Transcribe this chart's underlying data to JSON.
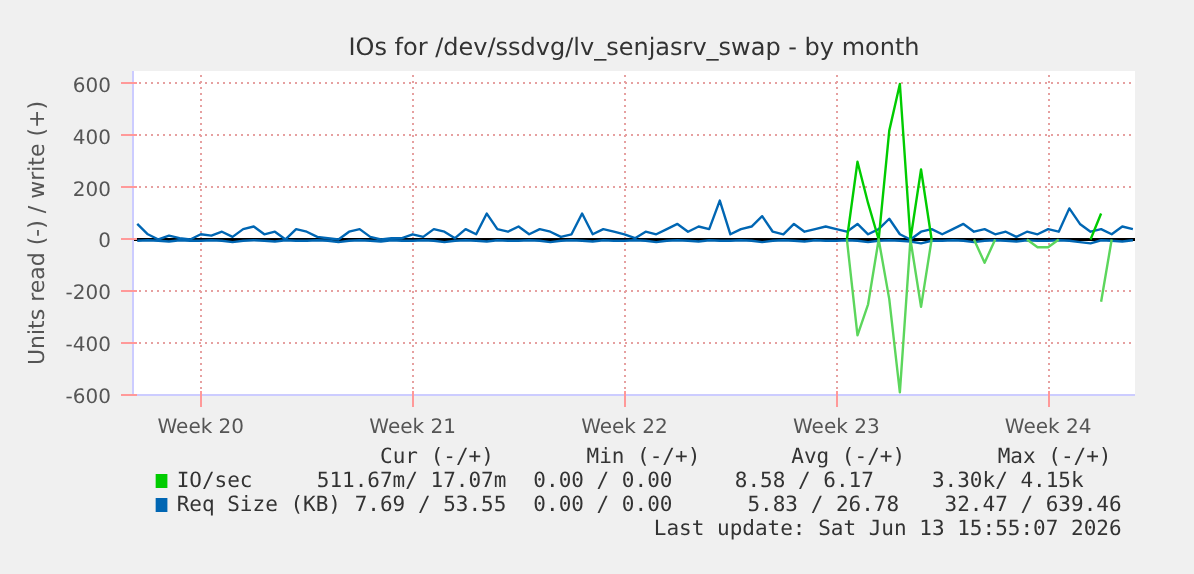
{
  "chart_data": {
    "type": "line",
    "title": "IOs for /dev/ssdvg/lv_senjasrv_swap - by month",
    "ylabel": "Units read (-) / write (+)",
    "categories": [
      null,
      null,
      null,
      null,
      null,
      null,
      "Week 20",
      null,
      null,
      null,
      null,
      null,
      null,
      null,
      null,
      null,
      null,
      null,
      null,
      null,
      null,
      null,
      null,
      null,
      null,
      null,
      "Week 21",
      null,
      null,
      null,
      null,
      null,
      null,
      null,
      null,
      null,
      null,
      null,
      null,
      null,
      null,
      null,
      null,
      null,
      null,
      null,
      "Week 22",
      null,
      null,
      null,
      null,
      null,
      null,
      null,
      null,
      null,
      null,
      null,
      null,
      null,
      null,
      null,
      null,
      null,
      null,
      null,
      "Week 23",
      null,
      null,
      null,
      null,
      null,
      null,
      null,
      null,
      null,
      null,
      null,
      null,
      null,
      null,
      null,
      null,
      null,
      null,
      null,
      "Week 24",
      null,
      null,
      null,
      null,
      null,
      null,
      null,
      null
    ],
    "ylim": [
      -600,
      650
    ],
    "yticks": [
      -600,
      -400,
      -200,
      0,
      200,
      400,
      600
    ],
    "grid": true,
    "legend": "bottom",
    "ref_lines": [
      {
        "axis": "y",
        "value": 0,
        "color": "#000000"
      }
    ],
    "series": [
      {
        "color": "#5cd65c",
        "values": [
          null,
          null,
          null,
          null,
          null,
          null,
          null,
          null,
          null,
          null,
          null,
          null,
          null,
          null,
          null,
          null,
          null,
          null,
          null,
          null,
          null,
          null,
          null,
          null,
          null,
          null,
          null,
          null,
          null,
          null,
          null,
          null,
          null,
          null,
          null,
          null,
          null,
          null,
          null,
          null,
          null,
          null,
          null,
          null,
          null,
          null,
          null,
          null,
          null,
          null,
          null,
          null,
          null,
          null,
          null,
          null,
          null,
          null,
          null,
          null,
          null,
          null,
          null,
          null,
          null,
          null,
          null,
          0,
          -370,
          -250,
          0,
          -230,
          -590,
          0,
          -260,
          0,
          null,
          null,
          null,
          0,
          -90,
          0,
          null,
          null,
          0,
          -30,
          -30,
          0,
          null,
          null,
          null,
          -240,
          0,
          null,
          null
        ]
      },
      {
        "name": "IO/sec",
        "color": "#00cc00",
        "values": [
          null,
          null,
          null,
          null,
          null,
          null,
          null,
          null,
          null,
          null,
          null,
          null,
          null,
          null,
          null,
          null,
          null,
          null,
          null,
          null,
          null,
          null,
          null,
          null,
          null,
          null,
          null,
          null,
          null,
          null,
          null,
          null,
          null,
          null,
          null,
          null,
          null,
          null,
          null,
          null,
          null,
          null,
          null,
          null,
          null,
          null,
          null,
          null,
          null,
          null,
          null,
          null,
          null,
          null,
          null,
          null,
          null,
          null,
          null,
          null,
          null,
          null,
          null,
          null,
          null,
          null,
          null,
          0,
          300,
          140,
          0,
          420,
          600,
          0,
          270,
          0,
          null,
          null,
          null,
          null,
          null,
          null,
          null,
          null,
          null,
          null,
          null,
          null,
          null,
          null,
          0,
          100,
          null,
          null,
          null
        ]
      },
      {
        "color": "#0066b3",
        "values": [
          -5,
          -3,
          -5,
          -8,
          -3,
          -5,
          -5,
          -3,
          -5,
          -10,
          -5,
          -3,
          -5,
          -8,
          -3,
          -5,
          -5,
          -3,
          -5,
          -10,
          -5,
          -3,
          -5,
          -8,
          -3,
          -5,
          -5,
          -3,
          -5,
          -10,
          -5,
          -3,
          -5,
          -8,
          -3,
          -5,
          -5,
          -3,
          -5,
          -10,
          -5,
          -3,
          -5,
          -8,
          -3,
          -5,
          -5,
          -3,
          -5,
          -10,
          -5,
          -3,
          -5,
          -8,
          -3,
          -5,
          -5,
          -3,
          -5,
          -10,
          -5,
          -3,
          -5,
          -8,
          -3,
          -5,
          -5,
          -3,
          -5,
          -10,
          -5,
          -3,
          -5,
          -8,
          -15,
          -5,
          -5,
          -3,
          -5,
          -10,
          -5,
          -3,
          -5,
          -8,
          -3,
          -5,
          -5,
          -3,
          -5,
          -10,
          -15,
          -3,
          -5,
          -8,
          -3
        ]
      },
      {
        "name": "Req Size (KB)",
        "color": "#0066b3",
        "values": [
          60,
          20,
          0,
          15,
          5,
          0,
          20,
          15,
          30,
          10,
          40,
          50,
          20,
          30,
          0,
          40,
          30,
          10,
          5,
          0,
          30,
          40,
          10,
          0,
          5,
          5,
          20,
          10,
          40,
          30,
          5,
          40,
          20,
          100,
          40,
          30,
          50,
          20,
          40,
          30,
          10,
          20,
          100,
          20,
          40,
          30,
          20,
          5,
          30,
          20,
          40,
          60,
          30,
          50,
          40,
          150,
          20,
          40,
          50,
          90,
          30,
          20,
          60,
          30,
          40,
          50,
          40,
          30,
          60,
          20,
          40,
          80,
          20,
          0,
          30,
          40,
          20,
          40,
          60,
          30,
          40,
          20,
          30,
          10,
          30,
          20,
          40,
          30,
          120,
          60,
          30,
          40,
          20,
          50,
          40
        ]
      }
    ],
    "annotations": [
      "Cur (-/+)",
      "Min (-/+)",
      "Avg (-/+)",
      "Max (-/+)",
      "511.67m/  17.07m",
      "0.00 /    0.00",
      "8.58 /    6.17",
      "3.30k/    4.15k",
      "7.69 /  53.55",
      "0.00 /    0.00",
      "5.83 /  26.78",
      "32.47 / 639.46",
      "Last update: Sat Jun 13 15:55:07 2026"
    ]
  }
}
